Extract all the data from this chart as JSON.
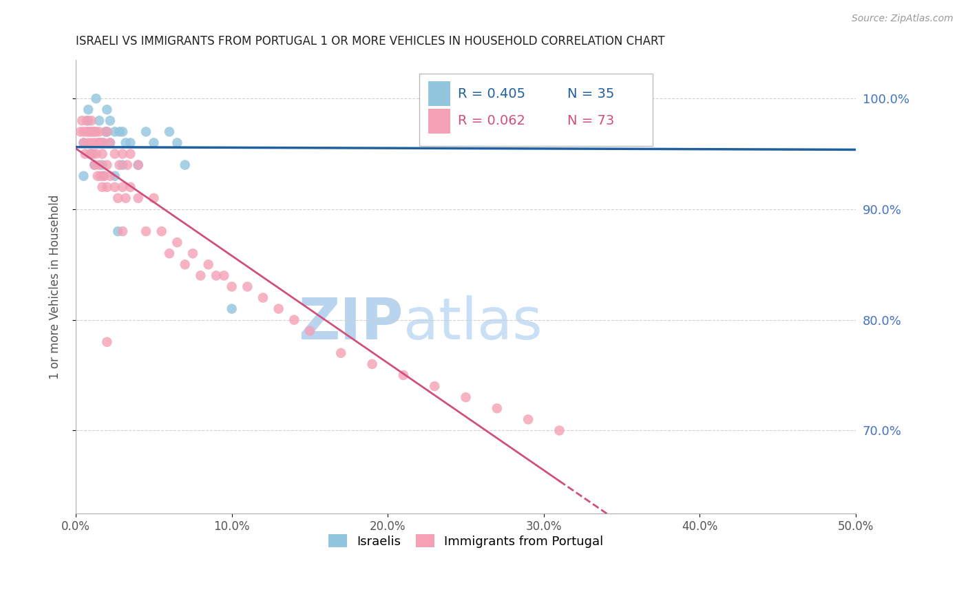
{
  "title": "ISRAELI VS IMMIGRANTS FROM PORTUGAL 1 OR MORE VEHICLES IN HOUSEHOLD CORRELATION CHART",
  "source": "Source: ZipAtlas.com",
  "ylabel": "1 or more Vehicles in Household",
  "x_min": 0.0,
  "x_max": 0.5,
  "y_min": 0.625,
  "y_max": 1.035,
  "legend_r1": "R = 0.405",
  "legend_n1": "N = 35",
  "legend_r2": "R = 0.062",
  "legend_n2": "N = 73",
  "color_israeli": "#92c5de",
  "color_portugal": "#f4a0b5",
  "color_trendline_israeli": "#2060a0",
  "color_trendline_portugal": "#d0507a",
  "israeli_x": [
    0.005,
    0.005,
    0.008,
    0.008,
    0.01,
    0.01,
    0.012,
    0.012,
    0.013,
    0.015,
    0.015,
    0.017,
    0.017,
    0.018,
    0.019,
    0.02,
    0.02,
    0.022,
    0.022,
    0.025,
    0.025,
    0.027,
    0.028,
    0.03,
    0.03,
    0.032,
    0.035,
    0.04,
    0.045,
    0.05,
    0.06,
    0.065,
    0.07,
    0.1,
    0.3
  ],
  "israeli_y": [
    0.93,
    0.96,
    0.98,
    0.99,
    0.95,
    0.97,
    0.94,
    0.97,
    1.0,
    0.96,
    0.98,
    0.94,
    0.96,
    0.93,
    0.97,
    0.97,
    0.99,
    0.96,
    0.98,
    0.93,
    0.97,
    0.88,
    0.97,
    0.94,
    0.97,
    0.96,
    0.96,
    0.94,
    0.97,
    0.96,
    0.97,
    0.96,
    0.94,
    0.81,
    1.0
  ],
  "portugal_x": [
    0.003,
    0.004,
    0.005,
    0.005,
    0.006,
    0.007,
    0.007,
    0.008,
    0.008,
    0.009,
    0.009,
    0.01,
    0.01,
    0.011,
    0.011,
    0.012,
    0.012,
    0.013,
    0.013,
    0.014,
    0.014,
    0.015,
    0.015,
    0.016,
    0.016,
    0.017,
    0.017,
    0.018,
    0.018,
    0.02,
    0.02,
    0.02,
    0.022,
    0.022,
    0.025,
    0.025,
    0.027,
    0.028,
    0.03,
    0.03,
    0.032,
    0.033,
    0.035,
    0.035,
    0.04,
    0.04,
    0.045,
    0.05,
    0.055,
    0.06,
    0.065,
    0.07,
    0.075,
    0.08,
    0.085,
    0.09,
    0.095,
    0.1,
    0.11,
    0.12,
    0.13,
    0.14,
    0.15,
    0.17,
    0.19,
    0.21,
    0.23,
    0.25,
    0.27,
    0.29,
    0.31,
    0.02,
    0.03
  ],
  "portugal_y": [
    0.97,
    0.98,
    0.97,
    0.96,
    0.95,
    0.97,
    0.98,
    0.96,
    0.97,
    0.95,
    0.97,
    0.96,
    0.98,
    0.95,
    0.97,
    0.94,
    0.96,
    0.95,
    0.97,
    0.93,
    0.96,
    0.94,
    0.97,
    0.93,
    0.96,
    0.92,
    0.95,
    0.93,
    0.96,
    0.92,
    0.94,
    0.97,
    0.93,
    0.96,
    0.92,
    0.95,
    0.91,
    0.94,
    0.92,
    0.95,
    0.91,
    0.94,
    0.92,
    0.95,
    0.91,
    0.94,
    0.88,
    0.91,
    0.88,
    0.86,
    0.87,
    0.85,
    0.86,
    0.84,
    0.85,
    0.84,
    0.84,
    0.83,
    0.83,
    0.82,
    0.81,
    0.8,
    0.79,
    0.77,
    0.76,
    0.75,
    0.74,
    0.73,
    0.72,
    0.71,
    0.7,
    0.78,
    0.88
  ],
  "background_color": "#ffffff",
  "grid_color": "#d0d0d0",
  "title_color": "#222222",
  "right_axis_color": "#4472c4",
  "watermark_zip_color": "#c8dff5",
  "watermark_atlas_color": "#c8dff5"
}
